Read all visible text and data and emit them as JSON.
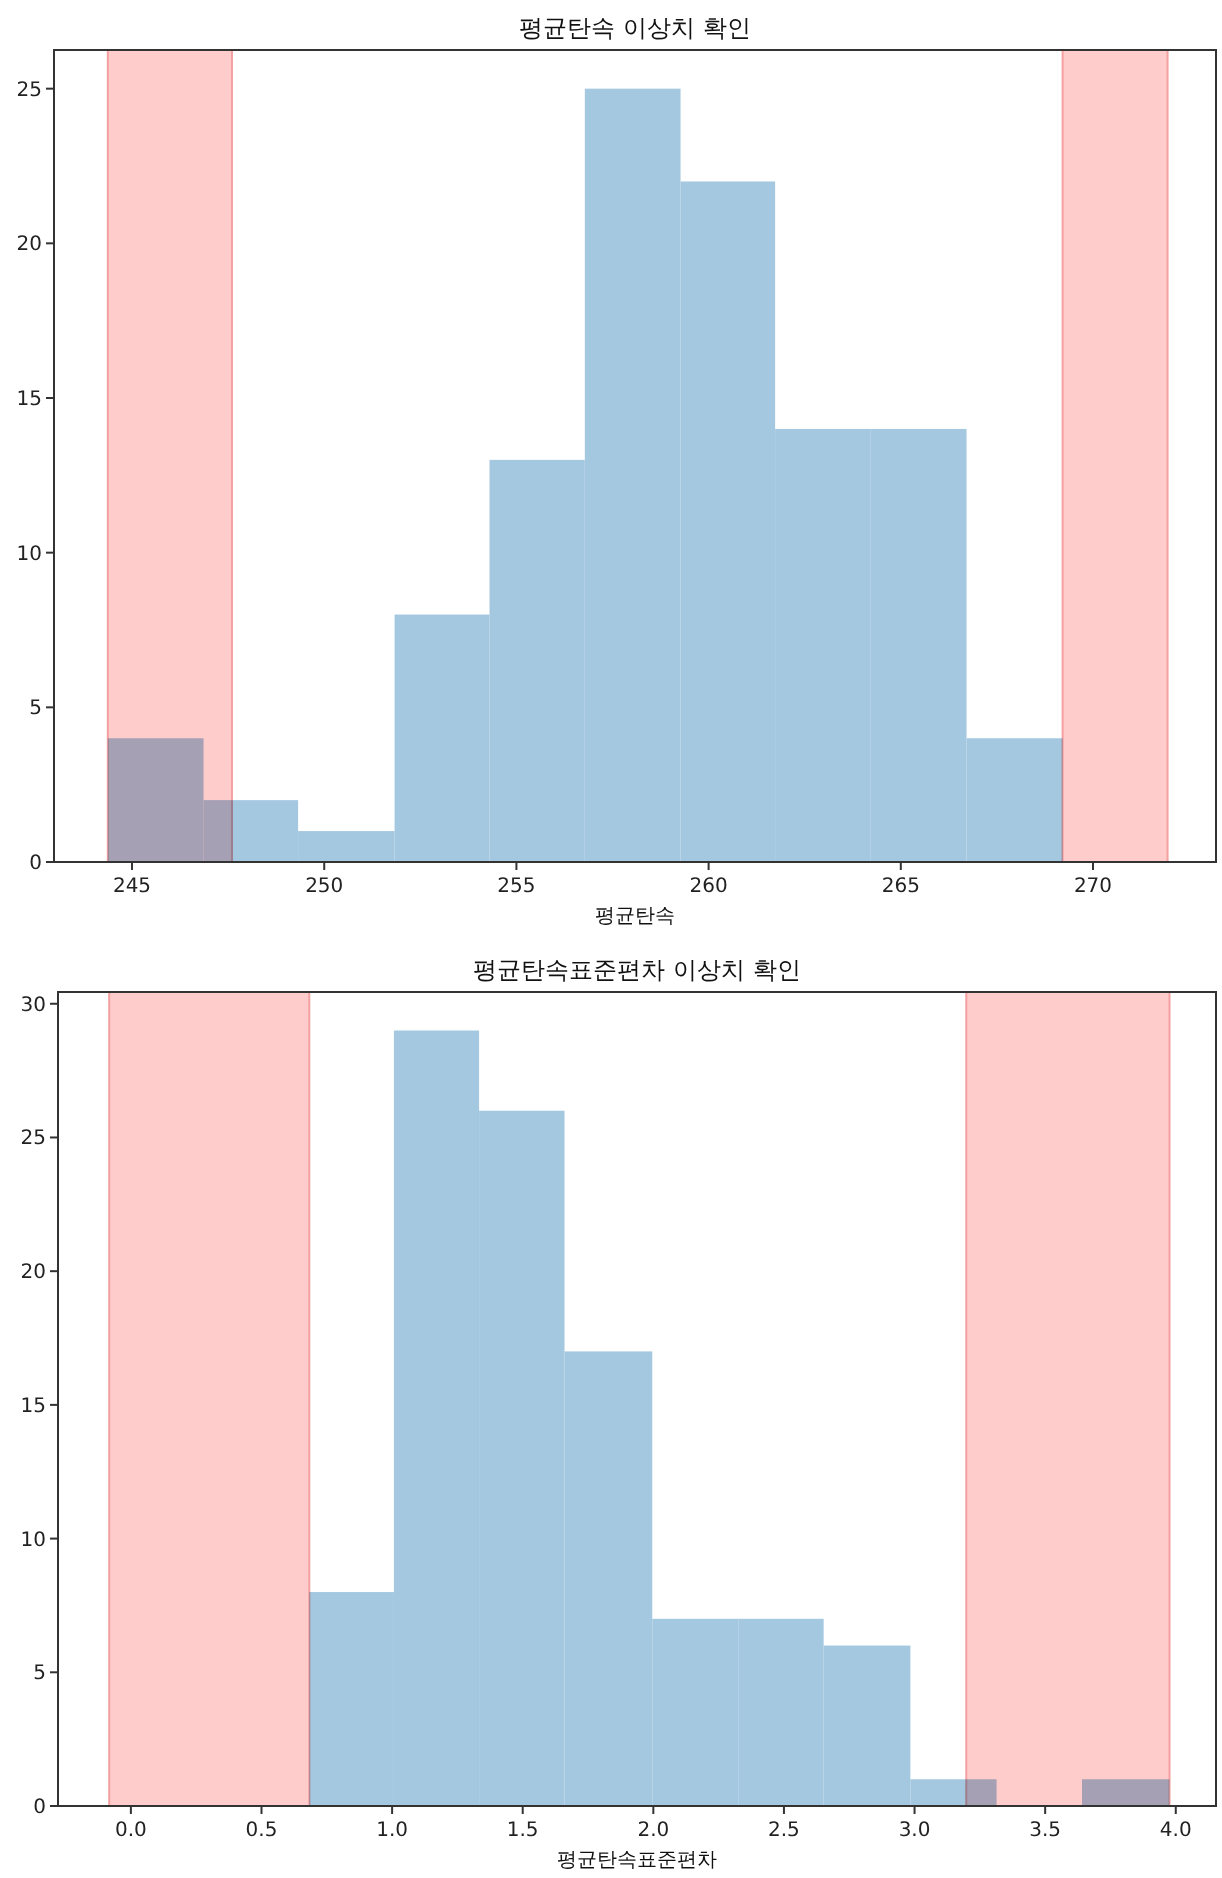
{
  "chart_data": [
    {
      "type": "histogram",
      "title": "평균탄속 이상치 확인",
      "xlabel": "평균탄속",
      "bins": [
        244.37,
        246.86,
        249.32,
        251.83,
        254.3,
        256.78,
        259.27,
        261.73,
        264.22,
        266.71,
        269.21
      ],
      "values": [
        4,
        2,
        1,
        8,
        13,
        25,
        22,
        14,
        14,
        4
      ],
      "color": "#a5c8e1",
      "xlim": [
        242.97,
        273.2
      ],
      "xticks": [
        245,
        250,
        255,
        260,
        265,
        270
      ],
      "ylim": [
        0,
        26.25
      ],
      "yticks": [
        0,
        5,
        10,
        15,
        20,
        25
      ],
      "bands": [
        {
          "axis": "x",
          "from": 244.37,
          "to": 247.6,
          "color": "#ffcccc"
        },
        {
          "axis": "x",
          "from": 269.21,
          "to": 271.94,
          "color": "#ffcccc"
        }
      ]
    },
    {
      "type": "histogram",
      "title": "평균탄속표준편차 이상치 확인",
      "xlabel": "평균탄속표준편차",
      "bins": [
        0.683,
        1.007,
        1.333,
        1.66,
        1.996,
        2.325,
        2.652,
        2.984,
        3.314,
        3.641,
        3.976
      ],
      "values": [
        8,
        29,
        26,
        17,
        7,
        7,
        6,
        1,
        0,
        1
      ],
      "color": "#a5c8e1",
      "xlim": [
        -0.279,
        4.154
      ],
      "xticks": [
        {
          "value": 0,
          "label": "0.0"
        },
        0.5,
        {
          "value": 1,
          "label": "1.0"
        },
        1.5,
        {
          "value": 2,
          "label": "2.0"
        },
        2.5,
        {
          "value": 3,
          "label": "3.0"
        },
        3.5,
        {
          "value": 4,
          "label": "4.0"
        }
      ],
      "ylim": [
        0,
        30.44
      ],
      "yticks": [
        0,
        5,
        10,
        15,
        20,
        25,
        30
      ],
      "bands": [
        {
          "axis": "x",
          "from": -0.083,
          "to": 0.683,
          "color": "#ffcccc"
        },
        {
          "axis": "x",
          "from": 3.198,
          "to": 3.976,
          "color": "#ffcccc"
        }
      ]
    }
  ]
}
